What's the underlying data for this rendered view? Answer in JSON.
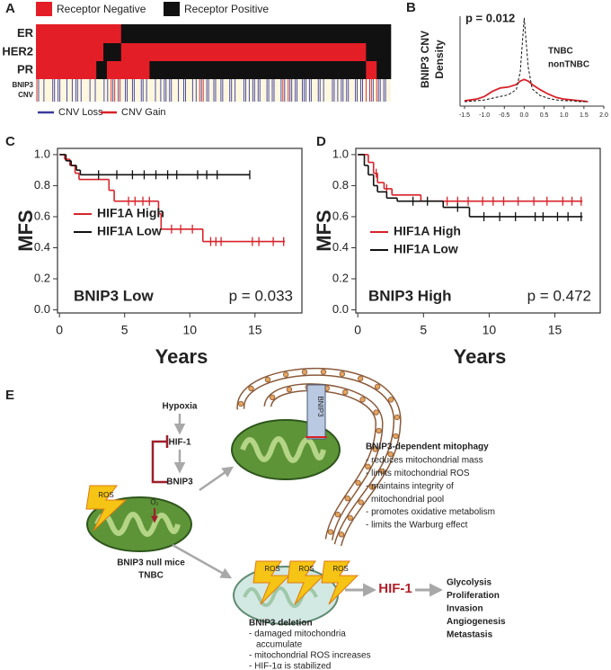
{
  "panel_labels": [
    "A",
    "B",
    "C",
    "D",
    "E"
  ],
  "heatmap": {
    "legend": [
      {
        "name": "Receptor Negative",
        "color": "#e41e26"
      },
      {
        "name": "Receptor Positive",
        "color": "#111111"
      }
    ],
    "rows": [
      {
        "name": "ER",
        "status": [
          0,
          1
        ],
        "counts": [
          24,
          76
        ]
      },
      {
        "name": "HER2",
        "status": [
          0,
          1,
          0,
          1
        ],
        "counts": [
          19,
          5,
          69,
          7
        ]
      },
      {
        "name": "PR",
        "status": [
          0,
          1,
          0,
          1,
          0,
          1
        ],
        "counts": [
          17,
          3,
          12,
          61,
          3,
          4
        ]
      }
    ],
    "cnv_label": [
      "BNIP3",
      "CNV"
    ],
    "cnv_background": "#fdf7df",
    "cnv_legend": [
      {
        "name": "CNV Loss",
        "color": "#3b3b9c"
      },
      {
        "name": "CNV Gain",
        "color": "#d8232a"
      }
    ]
  },
  "chart_data": [
    {
      "type": "line",
      "ylabel": [
        "BNIP3 CNV",
        "Density"
      ],
      "annotation": "p = 0.012",
      "x": [
        -1.5,
        -1.2,
        -1.0,
        -0.8,
        -0.6,
        -0.4,
        -0.2,
        -0.1,
        0,
        0.1,
        0.2,
        0.4,
        0.6,
        0.8,
        1.0,
        1.2,
        1.4,
        1.6
      ],
      "series": [
        {
          "name": "TNBC",
          "color": "#d8232a",
          "dashed": false,
          "values": [
            0.01,
            0.03,
            0.06,
            0.12,
            0.16,
            0.17,
            0.2,
            0.24,
            0.26,
            0.24,
            0.2,
            0.14,
            0.09,
            0.05,
            0.03,
            0.02,
            0.01,
            0.0
          ]
        },
        {
          "name": "nonTNBC",
          "color": "#111111",
          "dashed": true,
          "values": [
            0,
            0.01,
            0.02,
            0.04,
            0.06,
            0.08,
            0.14,
            0.35,
            0.98,
            0.4,
            0.15,
            0.07,
            0.04,
            0.02,
            0.01,
            0.01,
            0,
            0
          ]
        }
      ],
      "xlim": [
        -1.5,
        2.0
      ],
      "ylim": [
        0,
        1
      ],
      "xticks": [
        -1.5,
        {
          "value": -1,
          "label": "-1.0"
        },
        -0.5,
        {
          "value": 0,
          "label": "0.0"
        },
        0.5,
        {
          "value": 1,
          "label": "1.0"
        },
        1.5,
        {
          "value": 2,
          "label": "2.0"
        }
      ]
    },
    {
      "type": "line",
      "step": true,
      "ylabel": "MFS",
      "xlabel": "Years",
      "group_label": "BNIP3 Low",
      "annotation": "p = 0.033",
      "series": [
        {
          "name": "HIF1A High",
          "color": "#d8232a",
          "x": [
            0,
            0.4,
            0.8,
            1.2,
            1.5,
            3.8,
            4.2,
            7.6,
            7.8,
            11.0,
            17.3
          ],
          "values": [
            1.0,
            0.97,
            0.93,
            0.88,
            0.84,
            0.77,
            0.7,
            0.62,
            0.52,
            0.44,
            0.44
          ],
          "censored": [
            5.3,
            5.8,
            6.4,
            6.9,
            8.6,
            9.3,
            10.2,
            11.6,
            12.0,
            12.4,
            14.8,
            15.3,
            16.4,
            17.2
          ]
        },
        {
          "name": "HIF1A Low",
          "color": "#111111",
          "x": [
            0,
            0.5,
            0.9,
            1.3,
            1.6,
            14.6
          ],
          "values": [
            1.0,
            0.96,
            0.93,
            0.9,
            0.87,
            0.87
          ],
          "censored": [
            3.0,
            4.4,
            5.6,
            6.5,
            7.4,
            8.3,
            9.0,
            10.6,
            11.3,
            12.1,
            14.6
          ]
        }
      ],
      "xlim": [
        -0.15,
        18.6
      ],
      "ylim": [
        -0.02,
        1.04
      ],
      "xticks": [
        0,
        5,
        10,
        15
      ],
      "yticks": [
        {
          "value": 0,
          "label": "0.0"
        },
        0.2,
        0.4,
        0.6,
        0.8,
        {
          "value": 1,
          "label": "1.0"
        }
      ]
    },
    {
      "type": "line",
      "step": true,
      "ylabel": "MFS",
      "xlabel": "Years",
      "group_label": "BNIP3 High",
      "annotation": "p = 0.472",
      "series": [
        {
          "name": "HIF1A High",
          "color": "#d8232a",
          "x": [
            0,
            0.8,
            1.2,
            1.5,
            2.0,
            2.6,
            4.8,
            17.1
          ],
          "values": [
            1.0,
            0.95,
            0.88,
            0.82,
            0.78,
            0.74,
            0.7,
            0.7
          ],
          "censored": [
            1.4,
            2.2,
            6.8,
            7.6,
            8.4,
            9.5,
            10.3,
            11.1,
            12.2,
            13.4,
            14.4,
            15.6,
            16.3,
            17.0
          ]
        },
        {
          "name": "HIF1A Low",
          "color": "#111111",
          "x": [
            0,
            0.5,
            0.8,
            1.2,
            1.5,
            2.2,
            3.0,
            6.5,
            8.5,
            17.1
          ],
          "values": [
            1.0,
            0.93,
            0.87,
            0.8,
            0.76,
            0.72,
            0.7,
            0.66,
            0.6,
            0.6
          ],
          "censored": [
            4.2,
            5.3,
            7.6,
            9.6,
            10.8,
            12.0,
            13.5,
            14.1,
            15.2,
            16.0,
            17.0
          ]
        }
      ],
      "xlim": [
        -0.15,
        18.45
      ],
      "ylim": [
        -0.02,
        1.04
      ],
      "xticks": [
        0,
        5,
        10,
        15
      ],
      "yticks": [
        {
          "value": 0,
          "label": "0.0"
        },
        0.2,
        0.4,
        0.6,
        0.8,
        {
          "value": 1,
          "label": "1.0"
        }
      ]
    }
  ],
  "diagram": {
    "hypoxia": "Hypoxia",
    "hif1": "HIF-1",
    "bnip3": "BNIP3",
    "ros": "ROS",
    "o2": "O₂",
    "membrane_label": "BNIP3",
    "mitophagy": {
      "title": "BNIP3-dependent mitophagy",
      "lines": [
        "- reduces mitochondrial mass",
        "- limits mitochondrial ROS",
        "- maintains integrity of",
        "mitochondrial pool",
        "- promotes oxidative metabolism",
        "- limits the Warburg effect"
      ]
    },
    "null_context": [
      "BNIP3 null mice",
      "TNBC"
    ],
    "deletion_ros": [
      "ROS",
      "ROS",
      "ROS"
    ],
    "hif1_out": "HIF-1",
    "outcomes": [
      "Glycolysis",
      "Proliferation",
      "Invasion",
      "Angiogenesis",
      "Metastasis"
    ],
    "deletion": {
      "title": "BNIP3 deletion",
      "lines": [
        "- damaged mitochondria",
        "accumulate",
        "- mitochondrial ROS increases",
        "- HIF-1α is stabilized"
      ]
    }
  }
}
